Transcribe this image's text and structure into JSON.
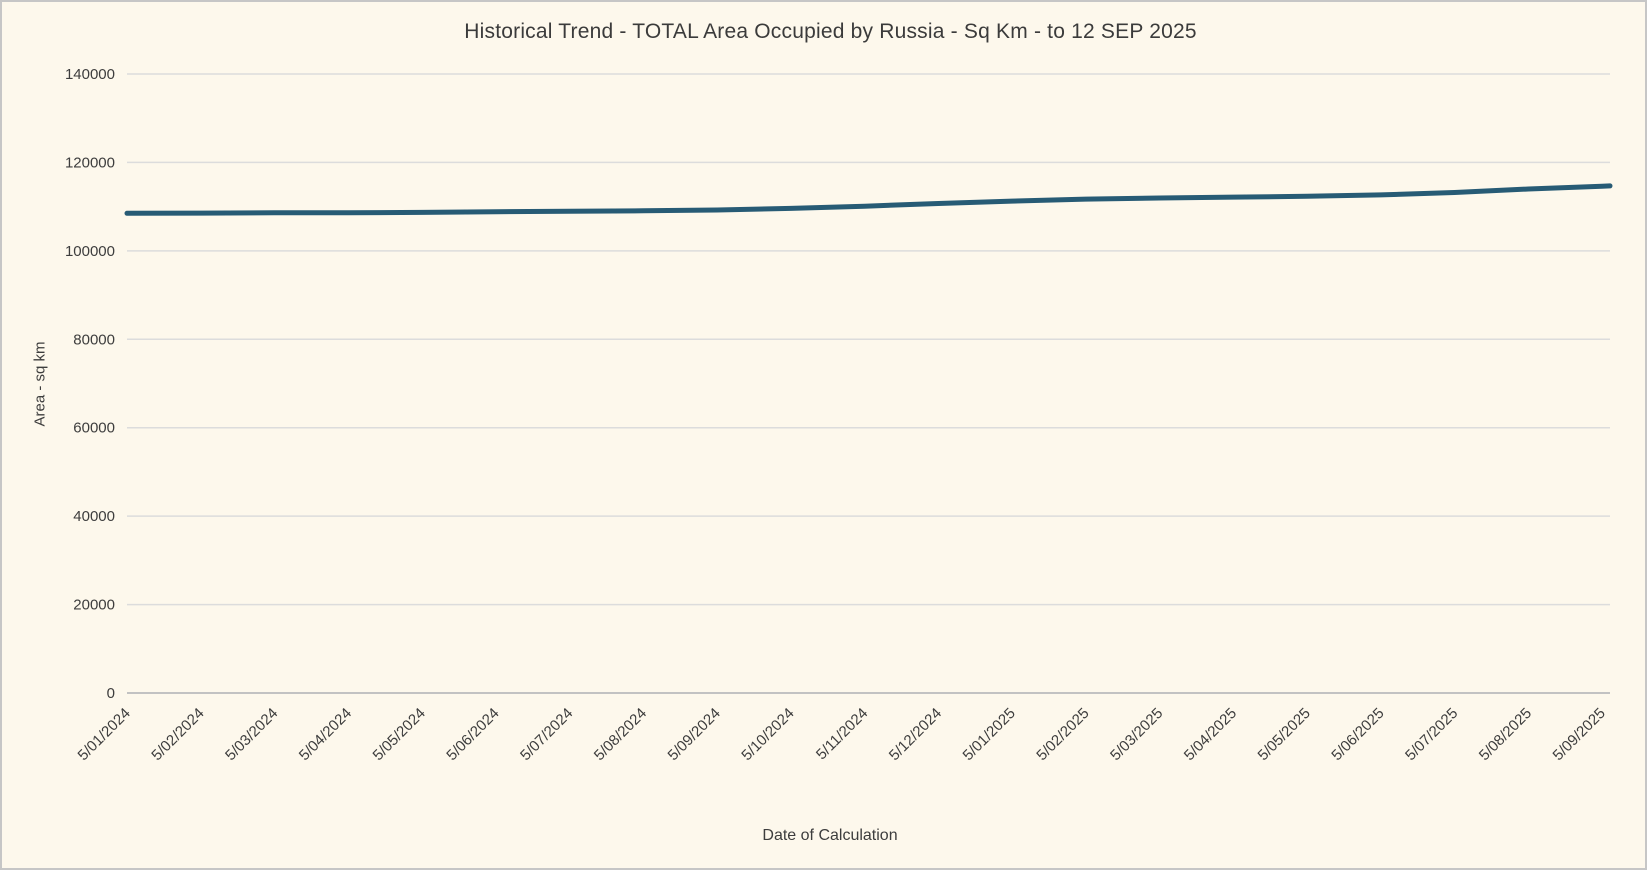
{
  "window": {
    "background_color": "#fdf8ec",
    "border_color": "#c6c6c6"
  },
  "chart_data": {
    "type": "line",
    "title": "Historical Trend - TOTAL Area Occupied by Russia - Sq Km - to 12 SEP 2025",
    "xlabel": "Date of Calculation",
    "ylabel": "Area - sq km",
    "categories": [
      "5/01/2024",
      "5/02/2024",
      "5/03/2024",
      "5/04/2024",
      "5/05/2024",
      "5/06/2024",
      "5/07/2024",
      "5/08/2024",
      "5/09/2024",
      "5/10/2024",
      "5/11/2024",
      "5/12/2024",
      "5/01/2025",
      "5/02/2025",
      "5/03/2025",
      "5/04/2025",
      "5/05/2025",
      "5/06/2025",
      "5/07/2025",
      "5/08/2025",
      "5/09/2025"
    ],
    "series": [
      {
        "name": "TOTAL Area Occupied by Russia - sq km",
        "values": [
          108500,
          108550,
          108600,
          108600,
          108700,
          108850,
          108950,
          109050,
          109250,
          109600,
          110100,
          110700,
          111250,
          111700,
          111950,
          112150,
          112350,
          112650,
          113200,
          114000,
          114600
        ],
        "end_value": 114700,
        "color": "#275b75",
        "line_width": 5
      }
    ],
    "ylim": [
      0,
      140000
    ],
    "ytick_step": 20000,
    "yticks": [
      0,
      20000,
      40000,
      60000,
      80000,
      100000,
      120000,
      140000
    ],
    "grid": true,
    "legend": "none",
    "grid_color": "#dcdcdc",
    "axis_line_color": "#c2c2c2",
    "text_color": "#3d3d3d",
    "x_tick_rotation_deg": -45
  }
}
